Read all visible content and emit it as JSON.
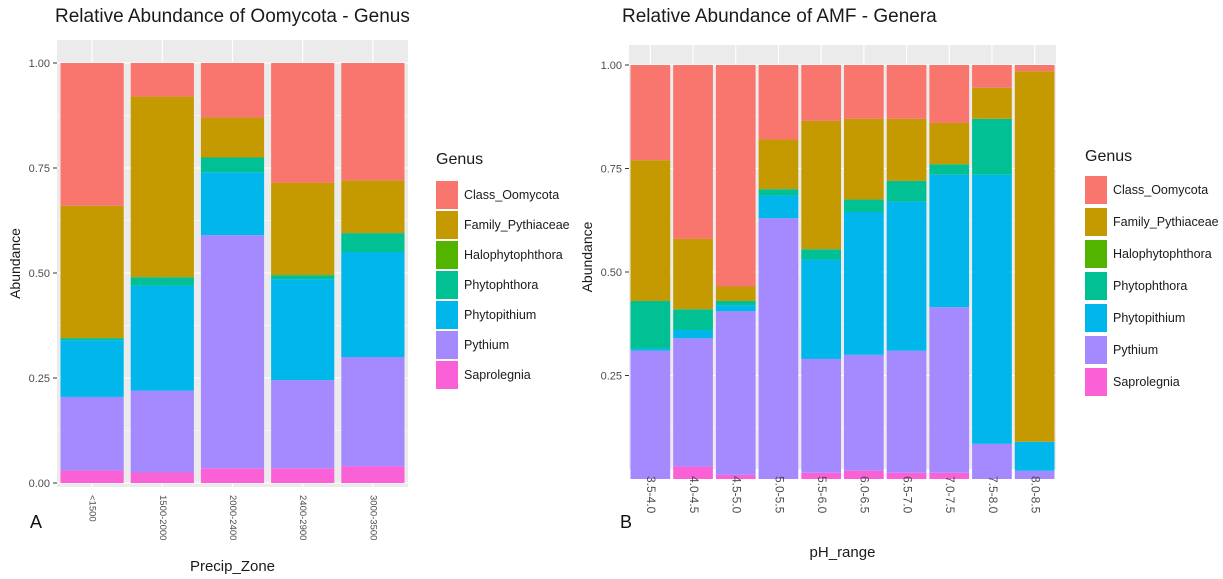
{
  "legend_title": "Genus",
  "series_colors": {
    "Class_Oomycota": "#F8766D",
    "Family_Pythiaceae": "#C49A00",
    "Halophytophthora": "#53B400",
    "Phytophthora": "#00C094",
    "Phytopithium": "#00B6EB",
    "Pythium": "#A58AFF",
    "Saprolegnia": "#FB61D7"
  },
  "panel_a": {
    "letter": "A"
  },
  "panel_b": {
    "letter": "B"
  },
  "chart_data": [
    {
      "type": "bar",
      "stacked": true,
      "title": "Relative Abundance of Oomycota - Genus",
      "xlabel": "Precip_Zone",
      "ylabel": "Abundance",
      "ylim": [
        0,
        1
      ],
      "yticks": [
        "0.00",
        "0.25",
        "0.50",
        "0.75",
        "1.00"
      ],
      "categories": [
        "<1500",
        "1500-2000",
        "2000-2400",
        "2400-2900",
        "3000-3500"
      ],
      "legend_position": "right",
      "series": [
        {
          "name": "Saprolegnia",
          "values": [
            0.03,
            0.025,
            0.035,
            0.035,
            0.04
          ]
        },
        {
          "name": "Pythium",
          "values": [
            0.175,
            0.195,
            0.555,
            0.21,
            0.26
          ]
        },
        {
          "name": "Phytopithium",
          "values": [
            0.135,
            0.25,
            0.15,
            0.24,
            0.25
          ]
        },
        {
          "name": "Phytophthora",
          "values": [
            0.005,
            0.02,
            0.035,
            0.01,
            0.045
          ]
        },
        {
          "name": "Halophytophthora",
          "values": [
            0,
            0,
            0,
            0,
            0
          ]
        },
        {
          "name": "Family_Pythiaceae",
          "values": [
            0.315,
            0.43,
            0.095,
            0.22,
            0.125
          ]
        },
        {
          "name": "Class_Oomycota",
          "values": [
            0.34,
            0.08,
            0.13,
            0.285,
            0.28
          ]
        }
      ]
    },
    {
      "type": "bar",
      "stacked": true,
      "title": "Relative Abundance of AMF - Genera",
      "xlabel": "pH_range",
      "ylabel": "Abundance",
      "ylim": [
        0,
        1
      ],
      "yticks": [
        "0.25",
        "0.50",
        "0.75",
        "1.00"
      ],
      "categories": [
        "3.5-4.0",
        "4.0-4.5",
        "4.5-5.0",
        "5.0-5.5",
        "5.5-6.0",
        "6.0-6.5",
        "6.5-7.0",
        "7.0-7.5",
        "7.5-8.0",
        "8.0-8.5"
      ],
      "legend_position": "right",
      "series": [
        {
          "name": "Saprolegnia",
          "values": [
            0,
            0.03,
            0.01,
            0,
            0.015,
            0.02,
            0.015,
            0.015,
            0,
            0
          ]
        },
        {
          "name": "Pythium",
          "values": [
            0.31,
            0.31,
            0.395,
            0.63,
            0.275,
            0.28,
            0.295,
            0.4,
            0.085,
            0.02
          ]
        },
        {
          "name": "Phytopithium",
          "values": [
            0.005,
            0.02,
            0.015,
            0.055,
            0.24,
            0.345,
            0.36,
            0.32,
            0.65,
            0.07
          ]
        },
        {
          "name": "Phytophthora",
          "values": [
            0.115,
            0.05,
            0.01,
            0.015,
            0.025,
            0.03,
            0.05,
            0.025,
            0.135,
            0
          ]
        },
        {
          "name": "Halophytophthora",
          "values": [
            0,
            0,
            0,
            0,
            0,
            0,
            0,
            0,
            0,
            0
          ]
        },
        {
          "name": "Family_Pythiaceae",
          "values": [
            0.34,
            0.17,
            0.035,
            0.12,
            0.31,
            0.195,
            0.15,
            0.1,
            0.075,
            0.895
          ]
        },
        {
          "name": "Class_Oomycota",
          "values": [
            0.23,
            0.42,
            0.535,
            0.18,
            0.135,
            0.13,
            0.13,
            0.14,
            0.055,
            0.015
          ]
        }
      ]
    }
  ]
}
